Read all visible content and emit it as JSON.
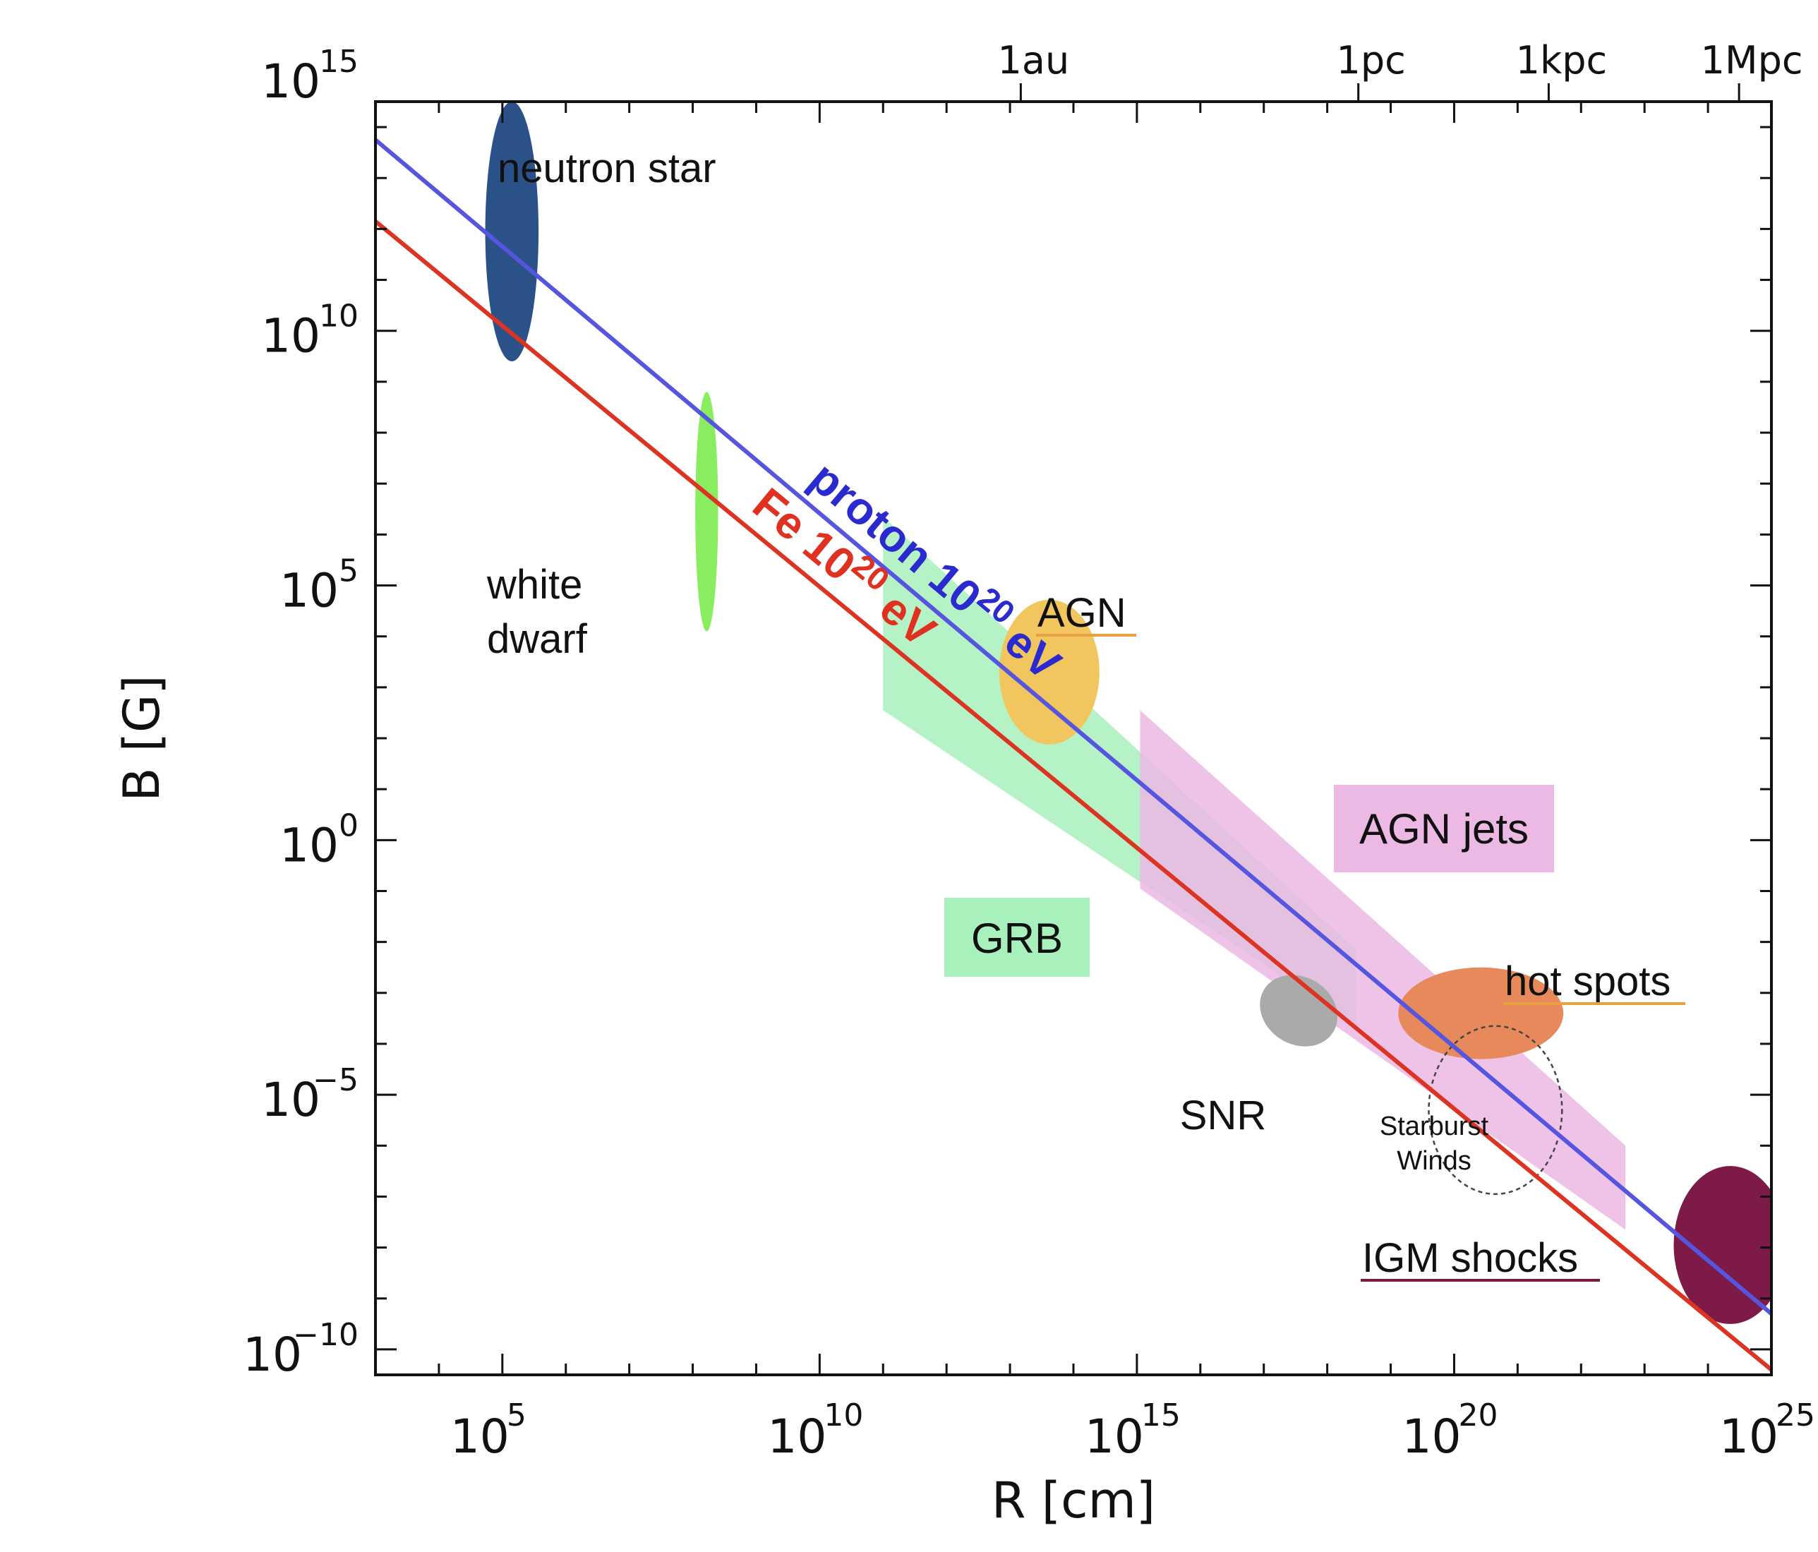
{
  "chart_data": {
    "type": "scatter",
    "title": "",
    "xlabel": "R [cm]",
    "ylabel": "B [G]",
    "x_scale": "log",
    "y_scale": "log",
    "xlim_log10": [
      3.0,
      25.0
    ],
    "ylim_log10": [
      -10.5,
      14.5
    ],
    "x_ticks": [
      {
        "log": 5,
        "base": "10",
        "exp": "5"
      },
      {
        "log": 10,
        "base": "10",
        "exp": "10"
      },
      {
        "log": 15,
        "base": "10",
        "exp": "15"
      },
      {
        "log": 20,
        "base": "10",
        "exp": "20"
      },
      {
        "log": 25,
        "base": "10",
        "exp": "25"
      }
    ],
    "y_ticks": [
      {
        "log": 15,
        "base": "10",
        "exp": "15"
      },
      {
        "log": 10,
        "base": "10",
        "exp": "10"
      },
      {
        "log": 5,
        "base": "10",
        "exp": "5"
      },
      {
        "log": 0,
        "base": "10",
        "exp": "0"
      },
      {
        "log": -5,
        "base": "10",
        "exp": "−5"
      },
      {
        "log": -10,
        "base": "10",
        "exp": "−10"
      }
    ],
    "top_axis_ticks": [
      {
        "label": "1au",
        "log": 13.17
      },
      {
        "label": "1pc",
        "log": 18.49
      },
      {
        "label": "1kpc",
        "log": 21.49
      },
      {
        "label": "1Mpc",
        "log": 24.49
      }
    ],
    "series": [
      {
        "name": "proton",
        "label_main": "proton 10",
        "label_exp": "20",
        "label_tail": " eV",
        "color": "#5555e0",
        "label_color": "#2a2ad0",
        "x": [
          3.0,
          25.0
        ],
        "y": [
          13.75,
          -9.3
        ]
      },
      {
        "name": "Fe",
        "label_main": "Fe 10",
        "label_exp": "20",
        "label_tail": " eV",
        "color": "#dd3322",
        "label_color": "#e03020",
        "x": [
          3.0,
          25.0
        ],
        "y": [
          12.15,
          -10.4
        ]
      }
    ],
    "regions": [
      {
        "name": "GRB",
        "label": "GRB",
        "color": "#a8f0bc",
        "points": [
          [
            11.0,
            6.35
          ],
          [
            18.45,
            -2.15
          ],
          [
            18.45,
            -3.65
          ],
          [
            11.0,
            2.55
          ]
        ]
      },
      {
        "name": "AGN jets",
        "label": "AGN jets",
        "color": "#ecb8e4",
        "points": [
          [
            15.05,
            2.55
          ],
          [
            22.7,
            -6.0
          ],
          [
            22.7,
            -7.65
          ],
          [
            15.05,
            -0.95
          ]
        ]
      }
    ],
    "objects": [
      {
        "name": "neutron star",
        "label": "neutron star",
        "color": "#2b5288",
        "cx": 5.15,
        "cy": 11.95,
        "rx": 0.42,
        "ry": 2.55,
        "rot": 0
      },
      {
        "name": "white dwarf",
        "label_lines": [
          "white",
          "dwarf"
        ],
        "color": "#88ee60",
        "cx": 8.22,
        "cy": 6.45,
        "rx": 0.18,
        "ry": 2.35,
        "rot": 0
      },
      {
        "name": "AGN",
        "label": "AGN",
        "color": "#f2c65e",
        "cx": 13.62,
        "cy": 3.3,
        "rx": 0.79,
        "ry": 1.42,
        "rot": 0
      },
      {
        "name": "SNR",
        "label": "SNR",
        "color": "#aaaaaa",
        "cx": 17.55,
        "cy": -3.35,
        "rx": 0.64,
        "ry": 0.66,
        "rot": 32
      },
      {
        "name": "hot spots",
        "label": "hot spots",
        "color": "#e8895c",
        "cx": 20.42,
        "cy": -3.4,
        "rx": 1.3,
        "ry": 0.9,
        "rot": 0
      },
      {
        "name": "Starburst Winds",
        "label_lines": [
          "Starburst",
          "Winds"
        ],
        "color": "none",
        "dashed": true,
        "cx": 20.65,
        "cy": -5.3,
        "rx": 1.05,
        "ry": 1.65,
        "rot": 0
      },
      {
        "name": "IGM shocks",
        "label": "IGM shocks",
        "color": "#7e1a48",
        "cx": 24.35,
        "cy": -7.95,
        "rx": 0.89,
        "ry": 1.55,
        "rot": 0
      }
    ]
  }
}
